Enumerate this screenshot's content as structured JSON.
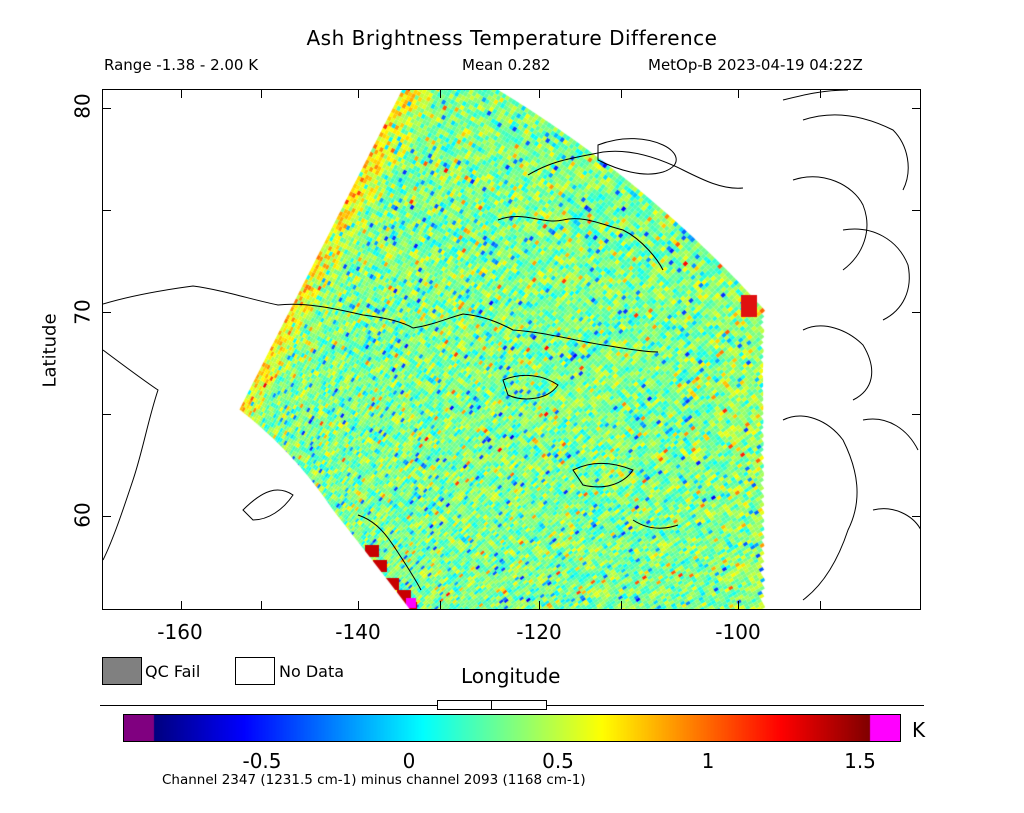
{
  "title": "Ash Brightness Temperature Difference",
  "subtitle": {
    "range": "Range -1.38 - 2.00 K",
    "mean": "Mean 0.282",
    "source": "MetOp-B 2023-04-19 04:22Z"
  },
  "map": {
    "x_label": "Longitude",
    "y_label": "Latitude",
    "x_ticks": [
      "-160",
      "-140",
      "-120",
      "-100"
    ],
    "y_ticks": [
      "80",
      "70",
      "60"
    ],
    "lon_range": [
      -167.5,
      -86.5
    ],
    "lat_range": [
      55.2,
      80.5
    ]
  },
  "legend": {
    "qc_fail": "QC Fail",
    "no_data": "No Data",
    "qc_color": "#808080",
    "nodata_color": "#ffffff"
  },
  "colorbar": {
    "unit": "K",
    "ticks": [
      "-0.5",
      "0",
      "0.5",
      "1",
      "1.5"
    ],
    "range": [
      -1.0,
      1.6
    ],
    "under_color": "#800080",
    "over_color": "#ff00ff"
  },
  "footer": "Channel 2347 (1231.5 cm-1) minus channel 2093 (1168 cm-1)",
  "colors": {
    "jet": [
      "#00007f",
      "#0000ff",
      "#007fff",
      "#00ffff",
      "#7fff7f",
      "#ffff00",
      "#ff7f00",
      "#ff0000",
      "#7f0000"
    ]
  }
}
